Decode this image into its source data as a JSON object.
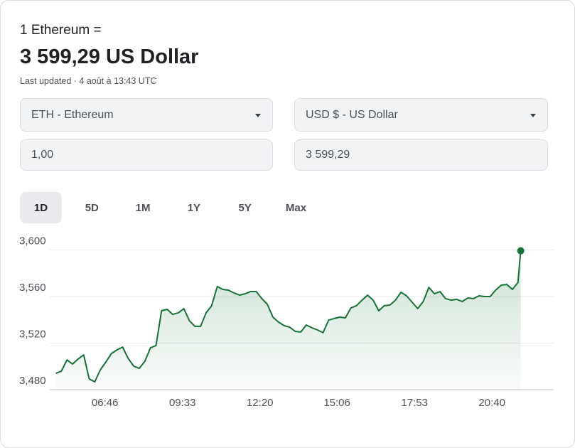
{
  "header": {
    "prefix": "1 Ethereum =",
    "amount": "3 599,29 US Dollar",
    "updated": "Last updated · 4 août à 13:43 UTC"
  },
  "converter": {
    "from_currency": "ETH - Ethereum",
    "to_currency": "USD $ - US Dollar",
    "from_amount": "1,00",
    "to_amount": "3 599,29"
  },
  "tabs": [
    "1D",
    "5D",
    "1M",
    "1Y",
    "5Y",
    "Max"
  ],
  "selected_tab": 0,
  "chart_data": {
    "type": "line",
    "color": "#137333",
    "grid": true,
    "x": [
      "05:00",
      "05:12",
      "05:24",
      "05:36",
      "05:48",
      "06:00",
      "06:12",
      "06:24",
      "06:36",
      "06:48",
      "07:00",
      "07:12",
      "07:24",
      "07:36",
      "07:48",
      "08:00",
      "08:12",
      "08:24",
      "08:36",
      "08:48",
      "09:00",
      "09:12",
      "09:24",
      "09:36",
      "09:48",
      "10:00",
      "10:12",
      "10:24",
      "10:36",
      "10:48",
      "11:00",
      "11:12",
      "11:24",
      "11:36",
      "11:48",
      "12:00",
      "12:12",
      "12:24",
      "12:36",
      "12:48",
      "13:00",
      "13:12",
      "13:24",
      "13:36",
      "13:48",
      "14:00",
      "14:12",
      "14:24",
      "14:36",
      "14:48",
      "15:00",
      "15:12",
      "15:24",
      "15:36",
      "15:48",
      "16:00",
      "16:12",
      "16:24",
      "16:36",
      "16:48",
      "17:00",
      "17:12",
      "17:24",
      "17:36",
      "17:48",
      "18:00",
      "18:12",
      "18:24",
      "18:36",
      "18:48",
      "19:00",
      "19:12",
      "19:24",
      "19:36",
      "19:48",
      "20:00",
      "20:12",
      "20:24",
      "20:36",
      "20:48",
      "21:00",
      "21:12",
      "21:24",
      "21:36",
      "21:42"
    ],
    "values": [
      3494.0,
      3495.9,
      3505.6,
      3502.0,
      3506.3,
      3509.9,
      3489.2,
      3486.7,
      3497.1,
      3503.8,
      3511.1,
      3514.2,
      3516.6,
      3506.9,
      3500.2,
      3498.3,
      3504.4,
      3516.0,
      3517.9,
      3547.8,
      3549.0,
      3544.7,
      3546.0,
      3549.6,
      3539.2,
      3534.4,
      3534.4,
      3546.0,
      3552.1,
      3568.6,
      3566.1,
      3565.5,
      3563.1,
      3561.2,
      3562.4,
      3564.3,
      3564.3,
      3558.2,
      3553.3,
      3542.3,
      3538.0,
      3535.0,
      3533.7,
      3530.1,
      3529.5,
      3535.6,
      3533.1,
      3531.3,
      3528.9,
      3539.8,
      3541.1,
      3542.3,
      3541.7,
      3550.2,
      3552.1,
      3556.9,
      3561.2,
      3556.9,
      3547.8,
      3552.1,
      3552.7,
      3556.9,
      3563.7,
      3560.6,
      3555.1,
      3549.6,
      3555.7,
      3567.9,
      3562.4,
      3564.3,
      3558.2,
      3556.9,
      3557.6,
      3555.7,
      3558.8,
      3558.2,
      3560.6,
      3560.0,
      3560.0,
      3565.5,
      3569.8,
      3570.4,
      3566.1,
      3572.0,
      3599.29
    ],
    "xlim": [
      "04:47",
      "22:53"
    ],
    "xticks": [
      "06:46",
      "09:33",
      "12:20",
      "15:06",
      "17:53",
      "20:40"
    ],
    "ylim": [
      3480,
      3600
    ],
    "yticks": [
      {
        "value": 3480,
        "label": "3,480"
      },
      {
        "value": 3520,
        "label": "3,520"
      },
      {
        "value": 3560,
        "label": "3,560"
      },
      {
        "value": 3600,
        "label": "3,600"
      }
    ]
  }
}
